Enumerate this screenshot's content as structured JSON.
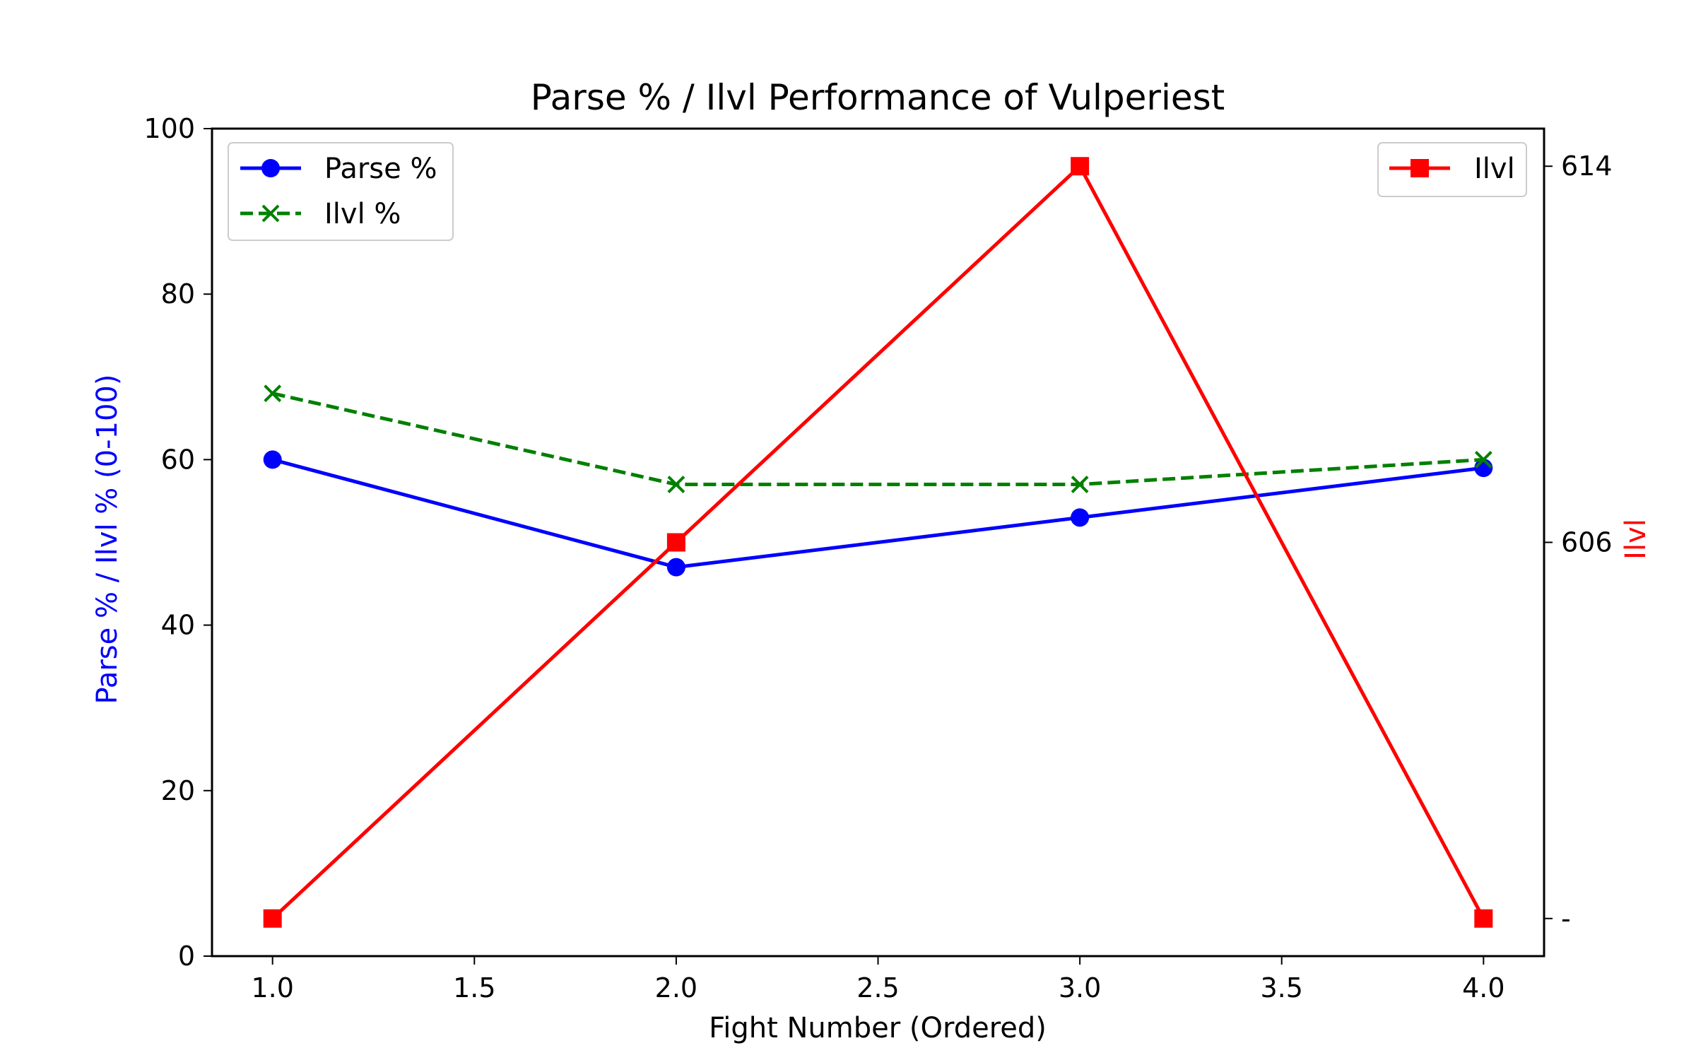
{
  "chart_data": {
    "type": "line",
    "title": "Parse % / Ilvl Performance of Vulperiest",
    "xlabel": "Fight Number (Ordered)",
    "ylabel": "Parse % / Ilvl % (0-100)",
    "ylabel_right": "Ilvl",
    "xlim": [
      0.85,
      4.15
    ],
    "ylim": [
      0,
      100
    ],
    "x_ticks": [
      "1.0",
      "1.5",
      "2.0",
      "2.5",
      "3.0",
      "3.5",
      "4.0"
    ],
    "y_ticks": [
      "0",
      "20",
      "40",
      "60",
      "80",
      "100"
    ],
    "right_ticks": [
      "-",
      "606",
      "614"
    ],
    "x": [
      1,
      2,
      3,
      4
    ],
    "series": [
      {
        "name": "Parse %",
        "axis": "left",
        "values": [
          60,
          47,
          53,
          59
        ],
        "color": "#0000ff",
        "marker": "circle",
        "line": "solid"
      },
      {
        "name": "Ilvl %",
        "axis": "left",
        "values": [
          68,
          57,
          57,
          60
        ],
        "color": "#008000",
        "marker": "x",
        "line": "dashed"
      },
      {
        "name": "Ilvl",
        "axis": "right",
        "values": [
          598,
          606,
          614,
          598
        ],
        "color": "#ff0000",
        "marker": "square",
        "line": "solid"
      }
    ],
    "right_ylim": [
      597.2,
      614.8
    ],
    "right_tick_values": [
      598,
      606,
      614
    ],
    "legend_left": "top-left",
    "legend_right": "top-right",
    "grid": false
  }
}
